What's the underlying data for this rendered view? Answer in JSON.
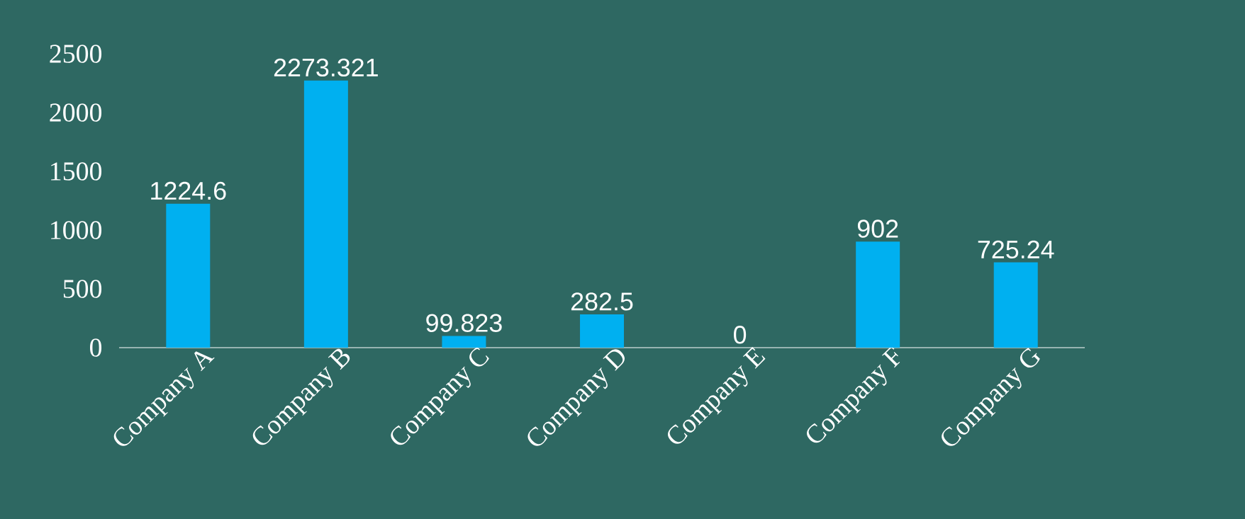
{
  "chart_data": {
    "type": "bar",
    "categories": [
      "Company A",
      "Company B",
      "Company C",
      "Company D",
      "Company E",
      "Company F",
      "Company G"
    ],
    "values": [
      1224.6,
      2273.321,
      99.823,
      282.5,
      0,
      902,
      725.24
    ],
    "color": "#00b0f0",
    "ylim": [
      0,
      2500
    ],
    "yticks": [
      0,
      500,
      1000,
      1500,
      2000,
      2500
    ],
    "grid": false,
    "data_labels": true
  }
}
